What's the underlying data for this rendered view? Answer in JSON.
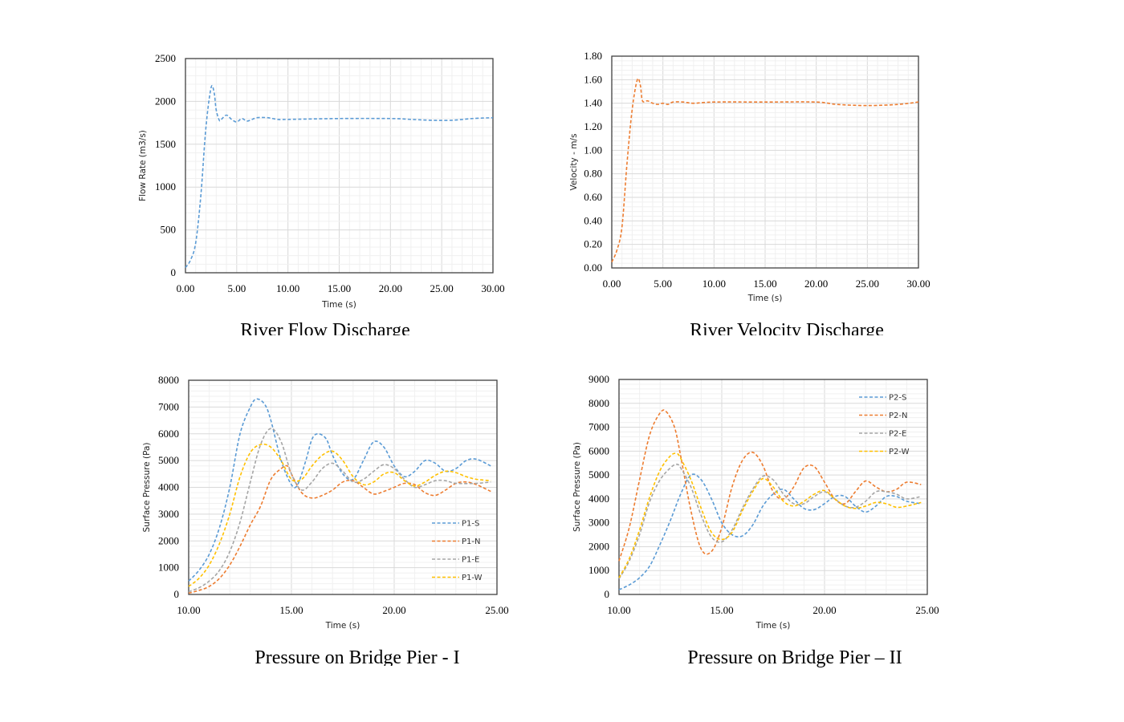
{
  "chart_data": [
    {
      "type": "line",
      "caption": "River Flow Discharge",
      "xlabel": "Time (s)",
      "ylabel": "Flow Rate (m3/s)",
      "xlim": [
        0,
        30
      ],
      "ylim": [
        0,
        2500
      ],
      "xticks": [
        "0.00",
        "5.00",
        "10.00",
        "15.00",
        "20.00",
        "25.00",
        "30.00"
      ],
      "yticks": [
        "0",
        "500",
        "1000",
        "1500",
        "2000",
        "2500"
      ],
      "grid": true,
      "series": [
        {
          "color": "#5B9BD5",
          "dashed": true,
          "x": [
            0,
            0.5,
            1,
            1.5,
            2,
            2.5,
            2.8,
            3,
            3.3,
            3.5,
            4,
            4.5,
            5,
            5.5,
            6,
            6.5,
            7,
            8,
            9,
            10,
            15,
            20,
            22,
            24,
            26,
            28,
            30
          ],
          "y": [
            60,
            150,
            350,
            900,
            1700,
            2160,
            2100,
            1900,
            1780,
            1790,
            1840,
            1790,
            1760,
            1800,
            1770,
            1790,
            1810,
            1810,
            1790,
            1790,
            1800,
            1800,
            1790,
            1780,
            1780,
            1800,
            1810
          ]
        }
      ]
    },
    {
      "type": "line",
      "caption": "River Velocity Discharge",
      "xlabel": "Time (s)",
      "ylabel": "Velocity - m/s",
      "xlim": [
        0,
        30
      ],
      "ylim": [
        0,
        1.8
      ],
      "xticks": [
        "0.00",
        "5.00",
        "10.00",
        "15.00",
        "20.00",
        "25.00",
        "30.00"
      ],
      "yticks": [
        "0.00",
        "0.20",
        "0.40",
        "0.60",
        "0.80",
        "1.00",
        "1.20",
        "1.40",
        "1.60",
        "1.80"
      ],
      "grid": true,
      "series": [
        {
          "color": "#ED7D31",
          "dashed": true,
          "x": [
            0,
            0.5,
            1,
            1.5,
            2,
            2.5,
            2.8,
            3,
            3.5,
            4,
            4.5,
            5,
            5.5,
            6,
            7,
            8,
            10,
            15,
            20,
            22,
            25,
            28,
            30
          ],
          "y": [
            0.05,
            0.15,
            0.35,
            0.9,
            1.35,
            1.6,
            1.55,
            1.42,
            1.42,
            1.4,
            1.39,
            1.4,
            1.39,
            1.41,
            1.41,
            1.4,
            1.41,
            1.41,
            1.41,
            1.39,
            1.38,
            1.39,
            1.41
          ]
        }
      ]
    },
    {
      "type": "line",
      "caption": "Pressure on Bridge Pier - I",
      "xlabel": "Time (s)",
      "ylabel": "Surface Pressure (Pa)",
      "xlim": [
        10,
        25
      ],
      "ylim": [
        0,
        8000
      ],
      "xticks": [
        "10.00",
        "15.00",
        "20.00",
        "25.00"
      ],
      "yticks": [
        "0",
        "1000",
        "2000",
        "3000",
        "4000",
        "5000",
        "6000",
        "7000",
        "8000"
      ],
      "grid": true,
      "legend": "bottom-right",
      "series": [
        {
          "name": "P1-S",
          "color": "#5B9BD5",
          "dashed": true,
          "x": [
            10,
            10.5,
            11,
            11.5,
            12,
            12.5,
            13,
            13.3,
            13.7,
            14,
            14.5,
            15,
            15.3,
            15.7,
            16,
            16.3,
            16.7,
            17,
            17.5,
            18,
            18.5,
            19,
            19.5,
            20,
            20.5,
            21,
            21.5,
            22,
            22.5,
            23,
            23.5,
            24,
            24.7
          ],
          "y": [
            500,
            900,
            1500,
            2500,
            4000,
            6000,
            7000,
            7300,
            7100,
            6500,
            5000,
            4100,
            4100,
            5000,
            5800,
            6000,
            5800,
            5200,
            4500,
            4300,
            5000,
            5700,
            5500,
            4800,
            4400,
            4600,
            5000,
            4900,
            4600,
            4700,
            5000,
            5050,
            4800
          ]
        },
        {
          "name": "P1-N",
          "color": "#ED7D31",
          "dashed": true,
          "x": [
            10,
            10.5,
            11,
            11.5,
            12,
            12.5,
            13,
            13.5,
            14,
            14.5,
            14.8,
            15,
            15.5,
            16,
            16.5,
            17,
            17.5,
            18,
            18.5,
            19,
            19.5,
            20,
            20.5,
            21,
            21.5,
            22,
            22.5,
            23,
            23.5,
            24,
            24.7
          ],
          "y": [
            50,
            150,
            300,
            600,
            1100,
            1800,
            2600,
            3300,
            4300,
            4700,
            4800,
            4500,
            3800,
            3600,
            3700,
            3900,
            4200,
            4250,
            4000,
            3750,
            3850,
            4000,
            4150,
            4100,
            3800,
            3700,
            3900,
            4150,
            4200,
            4100,
            3850
          ]
        },
        {
          "name": "P1-E",
          "color": "#A5A5A5",
          "dashed": true,
          "x": [
            10,
            10.5,
            11,
            11.5,
            12,
            12.5,
            13,
            13.5,
            14,
            14.5,
            15,
            15.5,
            16,
            16.5,
            17,
            17.5,
            18,
            18.5,
            19,
            19.5,
            20,
            20.5,
            21,
            21.5,
            22,
            22.5,
            23,
            24,
            24.7
          ],
          "y": [
            100,
            250,
            500,
            900,
            1600,
            2700,
            4200,
            5600,
            6200,
            5700,
            4500,
            3900,
            4200,
            4700,
            4900,
            4600,
            4200,
            4300,
            4600,
            4850,
            4700,
            4300,
            4000,
            4100,
            4250,
            4250,
            4150,
            4150,
            4200
          ]
        },
        {
          "name": "P1-W",
          "color": "#FFC000",
          "dashed": true,
          "x": [
            10,
            10.5,
            11,
            11.5,
            12,
            12.5,
            13,
            13.5,
            14,
            14.5,
            15,
            15.5,
            16,
            16.5,
            17,
            17.5,
            18,
            18.5,
            19,
            19.5,
            20,
            20.5,
            21,
            21.5,
            22,
            22.5,
            23,
            23.5,
            24,
            24.7
          ],
          "y": [
            300,
            600,
            1100,
            1900,
            3000,
            4400,
            5300,
            5600,
            5500,
            5000,
            4300,
            4300,
            4800,
            5200,
            5350,
            5000,
            4400,
            4100,
            4200,
            4500,
            4550,
            4250,
            4050,
            4200,
            4450,
            4600,
            4550,
            4400,
            4300,
            4250
          ]
        }
      ]
    },
    {
      "type": "line",
      "caption": "Pressure on Bridge Pier – II",
      "xlabel": "Time (s)",
      "ylabel": "Surface Pressure (Pa)",
      "xlim": [
        10,
        25
      ],
      "ylim": [
        0,
        9000
      ],
      "xticks": [
        "10.00",
        "15.00",
        "20.00",
        "25.00"
      ],
      "yticks": [
        "0",
        "1000",
        "2000",
        "3000",
        "4000",
        "5000",
        "6000",
        "7000",
        "8000",
        "9000"
      ],
      "grid": true,
      "legend": "top-right",
      "series": [
        {
          "name": "P2-S",
          "color": "#5B9BD5",
          "dashed": true,
          "x": [
            10,
            10.5,
            11,
            11.5,
            12,
            12.5,
            13,
            13.5,
            14,
            14.5,
            15,
            15.5,
            16,
            16.5,
            17,
            17.5,
            18,
            18.5,
            19,
            19.5,
            20,
            20.5,
            21,
            21.5,
            22,
            22.5,
            23,
            23.5,
            24,
            24.7
          ],
          "y": [
            200,
            400,
            700,
            1200,
            2100,
            3100,
            4200,
            5000,
            4800,
            4000,
            3000,
            2500,
            2450,
            2900,
            3700,
            4200,
            4400,
            4000,
            3600,
            3550,
            3800,
            4100,
            4100,
            3700,
            3450,
            3700,
            4100,
            4100,
            3900,
            3800
          ]
        },
        {
          "name": "P2-N",
          "color": "#ED7D31",
          "dashed": true,
          "x": [
            10,
            10.5,
            11,
            11.5,
            12,
            12.3,
            12.7,
            13,
            13.5,
            14,
            14.5,
            15,
            15.5,
            16,
            16.5,
            17,
            17.5,
            18,
            18.5,
            19,
            19.5,
            20,
            20.5,
            21,
            21.5,
            22,
            22.5,
            23,
            23.5,
            24,
            24.7
          ],
          "y": [
            1400,
            2800,
            4800,
            6700,
            7600,
            7650,
            7000,
            5800,
            3500,
            1900,
            1800,
            2800,
            4500,
            5600,
            5950,
            5400,
            4300,
            4000,
            4500,
            5300,
            5350,
            4700,
            4000,
            3800,
            4300,
            4750,
            4500,
            4300,
            4400,
            4700,
            4600
          ]
        },
        {
          "name": "P2-E",
          "color": "#A5A5A5",
          "dashed": true,
          "x": [
            10,
            10.5,
            11,
            11.5,
            12,
            12.5,
            12.8,
            13,
            13.5,
            14,
            14.5,
            15,
            15.5,
            16,
            16.5,
            17,
            17.5,
            18,
            18.5,
            19,
            19.5,
            20,
            20.5,
            21,
            21.5,
            22,
            22.5,
            23,
            23.5,
            24,
            24.7
          ],
          "y": [
            650,
            1400,
            2500,
            3900,
            4800,
            5300,
            5450,
            5300,
            4500,
            3300,
            2400,
            2200,
            2700,
            3600,
            4400,
            4950,
            4800,
            4200,
            3800,
            3800,
            4100,
            4300,
            4000,
            3700,
            3650,
            3900,
            4300,
            4300,
            4200,
            4000,
            4100
          ]
        },
        {
          "name": "P2-W",
          "color": "#FFC000",
          "dashed": true,
          "x": [
            10,
            10.5,
            11,
            11.5,
            12,
            12.5,
            12.8,
            13,
            13.5,
            14,
            14.5,
            15,
            15.5,
            16,
            16.5,
            17,
            17.5,
            18,
            18.5,
            19,
            19.5,
            20,
            20.5,
            21,
            21.5,
            22,
            22.5,
            23,
            23.5,
            24,
            24.7
          ],
          "y": [
            700,
            1500,
            2700,
            4100,
            5200,
            5800,
            5900,
            5700,
            4800,
            3600,
            2600,
            2300,
            2600,
            3500,
            4300,
            4850,
            4500,
            3900,
            3700,
            3900,
            4200,
            4350,
            4000,
            3700,
            3600,
            3700,
            3850,
            3800,
            3650,
            3700,
            3850
          ]
        }
      ]
    }
  ]
}
